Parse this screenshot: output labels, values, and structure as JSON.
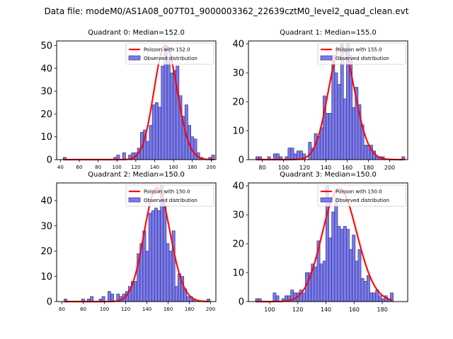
{
  "suptitle": "Data file: modeM0/AS1A08_007T01_9000003362_22639cztM0_level2_quad_clean.evt",
  "colors": {
    "bar_fill": "#7b7bee",
    "bar_edge": "#33337a",
    "poisson_line": "#ff0000"
  },
  "chart_data": [
    {
      "type": "bar",
      "title": "Quadrant 0: Median=152.0",
      "legend": [
        "Poisson with 152.0",
        "Observed distribution"
      ],
      "legend_placement": "top-right",
      "xlim": [
        36,
        205
      ],
      "ylim": [
        0,
        52
      ],
      "xticks": [
        40,
        60,
        80,
        100,
        120,
        140,
        160,
        180,
        200
      ],
      "yticks": [
        0,
        10,
        20,
        30,
        40,
        50
      ],
      "tick_font": "small",
      "poisson_mean": 152.0,
      "poisson_scale": 50,
      "bin_start": 43,
      "bin_width": 3.15,
      "counts": [
        1,
        0,
        0,
        0,
        0,
        0,
        0,
        0,
        0,
        0,
        0,
        0,
        0,
        0,
        0,
        0,
        0,
        1,
        2,
        0,
        3,
        0,
        2,
        3,
        3,
        5,
        12,
        13,
        8,
        15,
        24,
        25,
        23,
        41,
        50,
        45,
        38,
        39,
        41,
        28,
        19,
        24,
        15,
        10,
        9,
        3,
        1,
        0,
        0,
        1,
        2
      ]
    },
    {
      "type": "bar",
      "title": "Quadrant 1: Median=155.0",
      "legend": [
        "Poisson with 155.0",
        "Observed distribution"
      ],
      "legend_placement": "top-right",
      "xlim": [
        67,
        217
      ],
      "ylim": [
        0,
        41
      ],
      "xticks": [
        80,
        100,
        120,
        140,
        160,
        180,
        200
      ],
      "yticks": [
        0,
        10,
        20,
        30,
        40
      ],
      "tick_font": "small",
      "poisson_mean": 155.0,
      "poisson_scale": 39,
      "bin_start": 74,
      "bin_width": 2.75,
      "counts": [
        1,
        1,
        0,
        0,
        1,
        0,
        2,
        2,
        1,
        0,
        1,
        4,
        4,
        2,
        3,
        3,
        2,
        0,
        6,
        4,
        9,
        8,
        11,
        22,
        16,
        16,
        36,
        30,
        26,
        40,
        21,
        40,
        36,
        18,
        25,
        19,
        12,
        5,
        5,
        5,
        3,
        1,
        1,
        1,
        0,
        0,
        0,
        0,
        0,
        0,
        1
      ]
    },
    {
      "type": "bar",
      "title": "Quadrant 2: Median=150.0",
      "legend": [
        "Poisson with 150.0",
        "Observed distribution"
      ],
      "legend_placement": "top-right",
      "xlim": [
        55,
        205
      ],
      "ylim": [
        0,
        47
      ],
      "xticks": [
        60,
        80,
        100,
        120,
        140,
        160,
        180,
        200
      ],
      "yticks": [
        0,
        10,
        20,
        30,
        40
      ],
      "tick_font": "small",
      "poisson_mean": 150.0,
      "poisson_scale": 45,
      "bin_start": 62,
      "bin_width": 2.75,
      "counts": [
        1,
        0,
        0,
        0,
        0,
        0,
        1,
        0,
        1,
        2,
        0,
        0,
        1,
        2,
        0,
        4,
        3,
        0,
        3,
        2,
        3,
        4,
        6,
        8,
        8,
        19,
        23,
        28,
        20,
        35,
        36,
        37,
        36,
        46,
        38,
        23,
        20,
        28,
        6,
        11,
        10,
        5,
        2,
        2,
        1,
        0,
        0,
        0,
        0,
        1
      ]
    },
    {
      "type": "bar",
      "title": "Quadrant 3: Median=150.0",
      "legend": [
        "Poisson with 150.0",
        "Observed distribution"
      ],
      "legend_placement": "top-right",
      "xlim": [
        85,
        198
      ],
      "ylim": [
        0,
        41
      ],
      "xticks": [
        100,
        120,
        140,
        160,
        180
      ],
      "yticks": [
        0,
        10,
        20,
        30,
        40
      ],
      "tick_font": "small",
      "poisson_mean": 150.0,
      "poisson_scale": 39,
      "bin_start": 90,
      "bin_width": 2.08,
      "counts": [
        1,
        1,
        0,
        0,
        0,
        0,
        3,
        2,
        0,
        1,
        2,
        2,
        4,
        3,
        3,
        4,
        3,
        10,
        10,
        13,
        12,
        21,
        13,
        14,
        40,
        22,
        31,
        36,
        26,
        25,
        26,
        25,
        18,
        23,
        14,
        18,
        8,
        7,
        9,
        3,
        3,
        4,
        2,
        1,
        2,
        1,
        3
      ]
    }
  ]
}
